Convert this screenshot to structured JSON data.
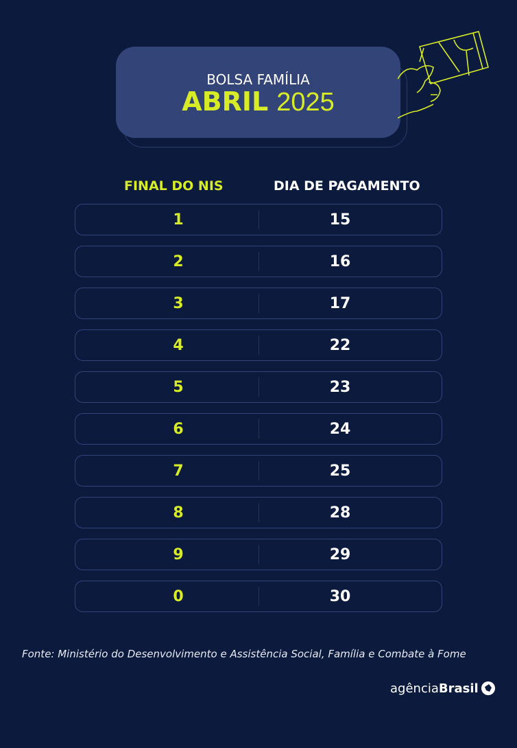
{
  "header": {
    "subtitle": "BOLSA FAMÍLIA",
    "month": "ABRIL",
    "year": "2025"
  },
  "table": {
    "headers": [
      "FINAL DO NIS",
      "DIA DE PAGAMENTO"
    ],
    "rows": [
      [
        "1",
        "15"
      ],
      [
        "2",
        "16"
      ],
      [
        "3",
        "17"
      ],
      [
        "4",
        "22"
      ],
      [
        "5",
        "23"
      ],
      [
        "6",
        "24"
      ],
      [
        "7",
        "25"
      ],
      [
        "8",
        "28"
      ],
      [
        "9",
        "29"
      ],
      [
        "0",
        "30"
      ]
    ]
  },
  "source": "Fonte: Ministério do Desenvolvimento e Assistência Social, Família e Combate à Fome",
  "logo": {
    "light": "agência",
    "bold": "Brasil"
  },
  "colors": {
    "background": "#0c1a3e",
    "accent": "#d7ec24",
    "panel": "#334479"
  }
}
